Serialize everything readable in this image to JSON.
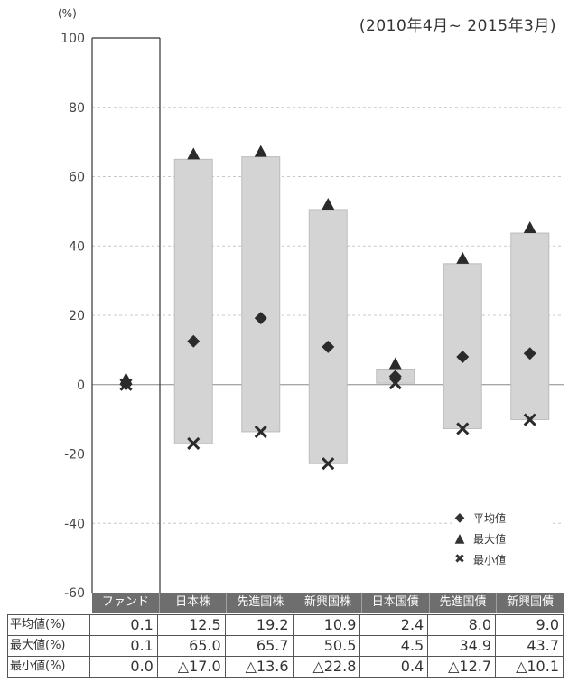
{
  "chart_data": {
    "type": "range",
    "unit_label": "(%)",
    "period_label": "(2010年4月~ 2015年3月)",
    "ylim": [
      -60,
      100
    ],
    "yticks": [
      100,
      80,
      60,
      40,
      20,
      0,
      -20,
      -40,
      -60
    ],
    "categories": [
      "ファンド",
      "日本株",
      "先進国株",
      "新興国株",
      "日本国債",
      "先進国債",
      "新興国債"
    ],
    "series": [
      {
        "name": "平均値",
        "values": [
          0.1,
          12.5,
          19.2,
          10.9,
          2.4,
          8.0,
          9.0
        ]
      },
      {
        "name": "最大値",
        "values": [
          0.1,
          65.0,
          65.7,
          50.5,
          4.5,
          34.9,
          43.7
        ]
      },
      {
        "name": "最小値",
        "values": [
          0.0,
          -17.0,
          -13.6,
          -22.8,
          0.4,
          -12.7,
          -10.1
        ]
      }
    ],
    "legend": [
      "平均値",
      "最大値",
      "最小値"
    ],
    "legend_position": "bottom-right",
    "grid": true
  },
  "table": {
    "row_labels": [
      "平均値(%)",
      "最大値(%)",
      "最小値(%)"
    ],
    "rows": [
      [
        "0.1",
        "12.5",
        "19.2",
        "10.9",
        "2.4",
        "8.0",
        "9.0"
      ],
      [
        "0.1",
        "65.0",
        "65.7",
        "50.5",
        "4.5",
        "34.9",
        "43.7"
      ],
      [
        "0.0",
        "△17.0",
        "△13.6",
        "△22.8",
        "0.4",
        "△12.7",
        "△10.1"
      ]
    ]
  },
  "legend_symbols": {
    "mean": "◆",
    "max": "▲",
    "min": "✖"
  },
  "colors": {
    "bar": "#d4d4d4",
    "bar_edge": "#bdbdbd",
    "marker": "#2b2b2b",
    "grid": "#c8c8c8",
    "band": "#6e6e6e"
  }
}
